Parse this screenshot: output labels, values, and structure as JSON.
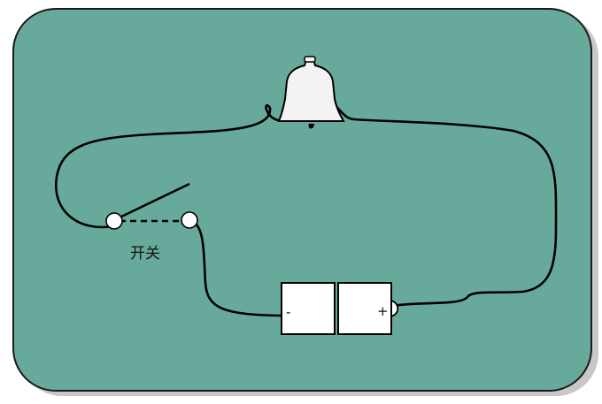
{
  "colors": {
    "board_fill": "#67AA9B",
    "board_stroke": "#1a1a1a",
    "wire": "#000000",
    "component_fill": "#ffffff",
    "bell_fill": "#f3f3f3"
  },
  "components": {
    "bell": {
      "icon": "bell-icon"
    },
    "switch": {
      "label": "开关",
      "state": "open"
    },
    "battery": {
      "negative_label": "-",
      "positive_label": "+"
    }
  }
}
